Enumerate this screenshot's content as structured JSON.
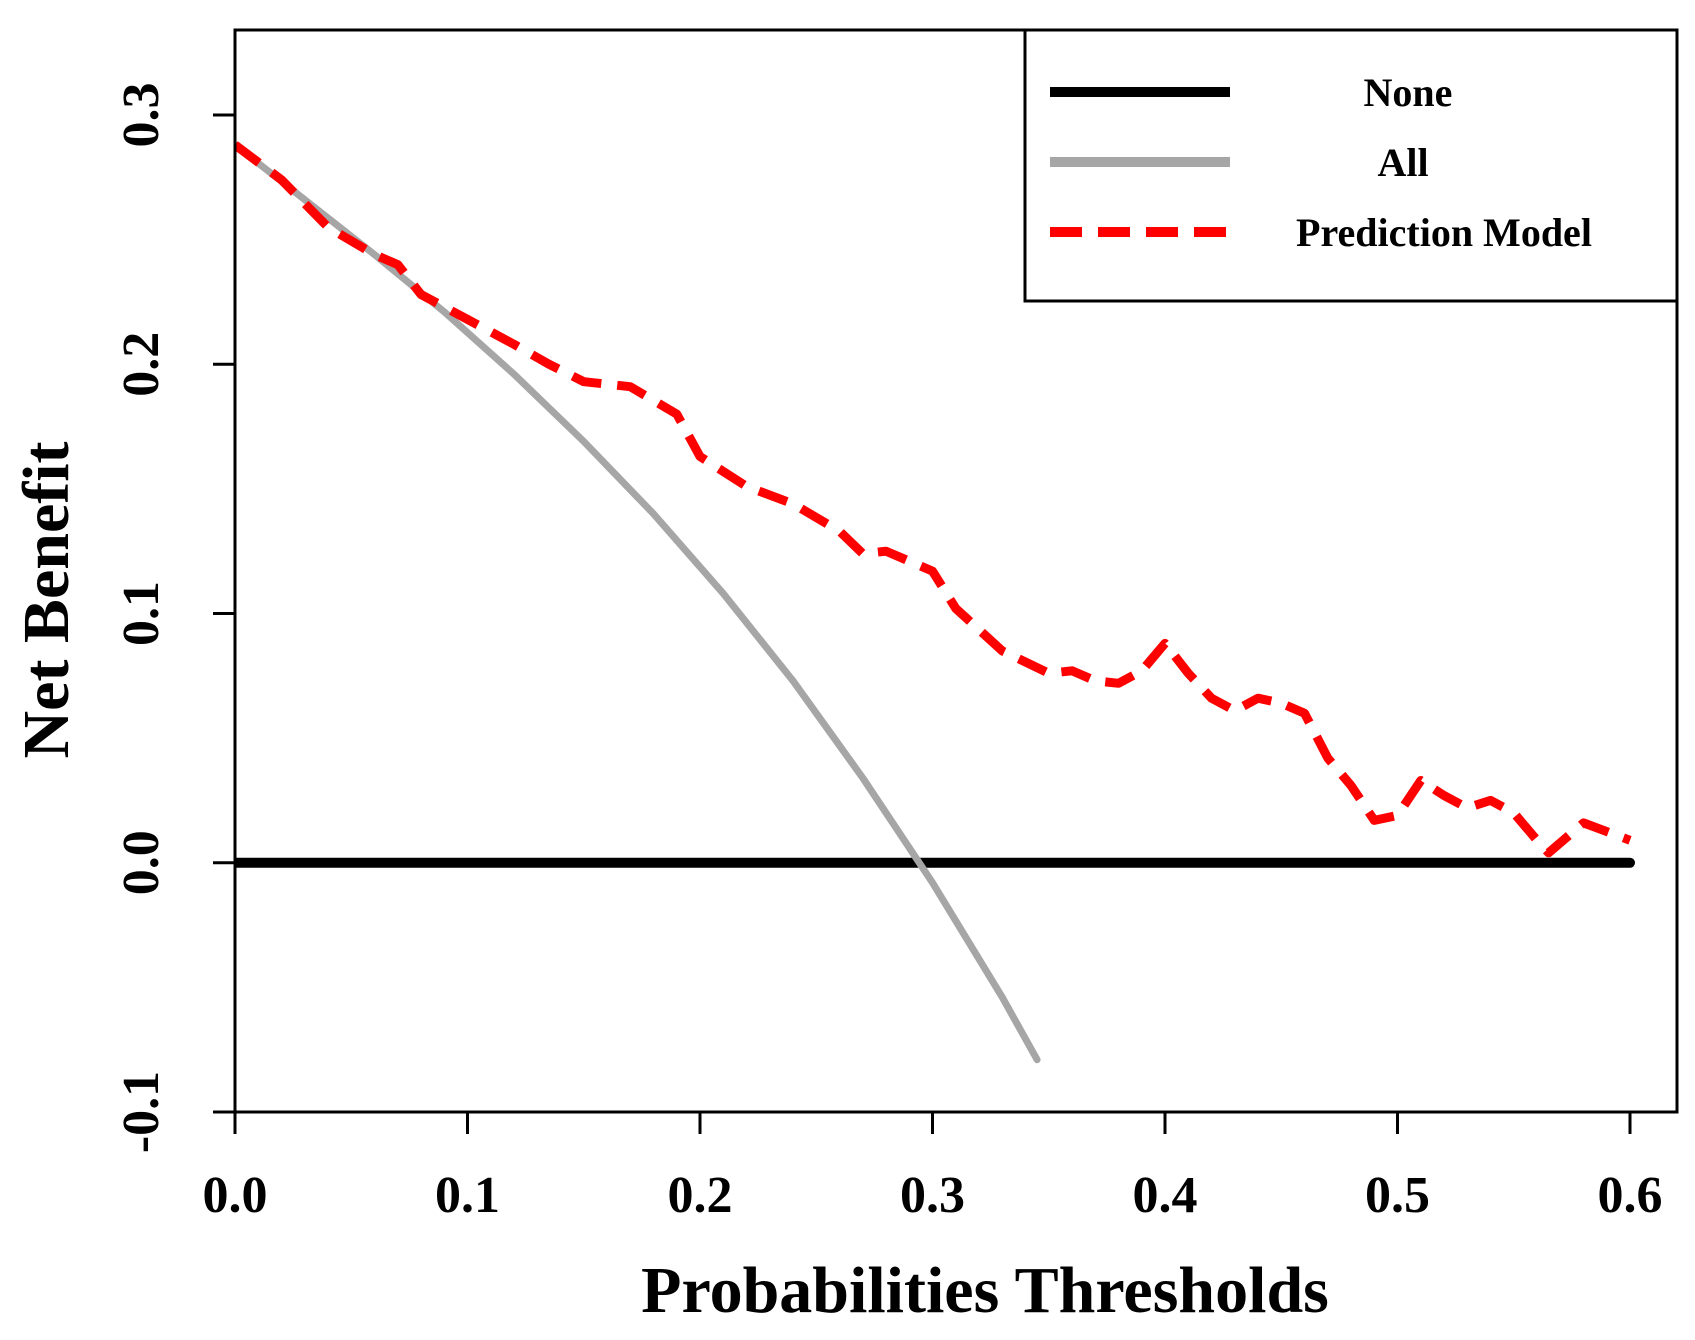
{
  "chart_data": {
    "type": "line",
    "title": "",
    "xlabel": "Probabilities Thresholds",
    "ylabel": "Net Benefit",
    "xlim": [
      0.0,
      0.6
    ],
    "ylim": [
      -0.1,
      0.3
    ],
    "x_ticks": [
      0.0,
      0.1,
      0.2,
      0.3,
      0.4,
      0.5,
      0.6
    ],
    "x_tick_labels": [
      "0.0",
      "0.1",
      "0.2",
      "0.3",
      "0.4",
      "0.5",
      "0.6"
    ],
    "y_ticks": [
      -0.1,
      0.0,
      0.1,
      0.2,
      0.3
    ],
    "y_tick_labels": [
      "-0.1",
      "0.0",
      "0.1",
      "0.2",
      "0.3"
    ],
    "grid": false,
    "legend": {
      "position": "top-right",
      "entries": [
        "None",
        "All",
        "Prediction Model"
      ]
    },
    "series": [
      {
        "name": "None",
        "color": "#000000",
        "style": "solid",
        "points": [
          [
            0.0,
            0.0
          ],
          [
            0.6,
            0.0
          ]
        ]
      },
      {
        "name": "All",
        "color": "#a6a6a6",
        "style": "solid",
        "points": [
          [
            0.0,
            0.288
          ],
          [
            0.03,
            0.266
          ],
          [
            0.06,
            0.244
          ],
          [
            0.09,
            0.221
          ],
          [
            0.12,
            0.196
          ],
          [
            0.15,
            0.169
          ],
          [
            0.18,
            0.14
          ],
          [
            0.21,
            0.108
          ],
          [
            0.24,
            0.073
          ],
          [
            0.27,
            0.034
          ],
          [
            0.3,
            -0.008
          ],
          [
            0.33,
            -0.054
          ],
          [
            0.345,
            -0.079
          ]
        ]
      },
      {
        "name": "Prediction Model",
        "color": "#ff0000",
        "style": "dashed",
        "points": [
          [
            0.0,
            0.288
          ],
          [
            0.02,
            0.274
          ],
          [
            0.04,
            0.255
          ],
          [
            0.06,
            0.244
          ],
          [
            0.07,
            0.24
          ],
          [
            0.08,
            0.228
          ],
          [
            0.1,
            0.218
          ],
          [
            0.12,
            0.208
          ],
          [
            0.135,
            0.2
          ],
          [
            0.15,
            0.193
          ],
          [
            0.17,
            0.191
          ],
          [
            0.19,
            0.18
          ],
          [
            0.2,
            0.163
          ],
          [
            0.22,
            0.151
          ],
          [
            0.24,
            0.144
          ],
          [
            0.26,
            0.133
          ],
          [
            0.27,
            0.124
          ],
          [
            0.28,
            0.125
          ],
          [
            0.3,
            0.117
          ],
          [
            0.31,
            0.102
          ],
          [
            0.33,
            0.085
          ],
          [
            0.35,
            0.076
          ],
          [
            0.36,
            0.077
          ],
          [
            0.37,
            0.073
          ],
          [
            0.38,
            0.072
          ],
          [
            0.39,
            0.077
          ],
          [
            0.4,
            0.088
          ],
          [
            0.41,
            0.076
          ],
          [
            0.42,
            0.066
          ],
          [
            0.43,
            0.061
          ],
          [
            0.44,
            0.066
          ],
          [
            0.45,
            0.064
          ],
          [
            0.46,
            0.06
          ],
          [
            0.47,
            0.042
          ],
          [
            0.48,
            0.031
          ],
          [
            0.49,
            0.017
          ],
          [
            0.5,
            0.019
          ],
          [
            0.51,
            0.033
          ],
          [
            0.52,
            0.027
          ],
          [
            0.53,
            0.022
          ],
          [
            0.54,
            0.025
          ],
          [
            0.55,
            0.02
          ],
          [
            0.56,
            0.009
          ],
          [
            0.565,
            0.004
          ],
          [
            0.58,
            0.016
          ],
          [
            0.6,
            0.009
          ]
        ]
      }
    ]
  }
}
